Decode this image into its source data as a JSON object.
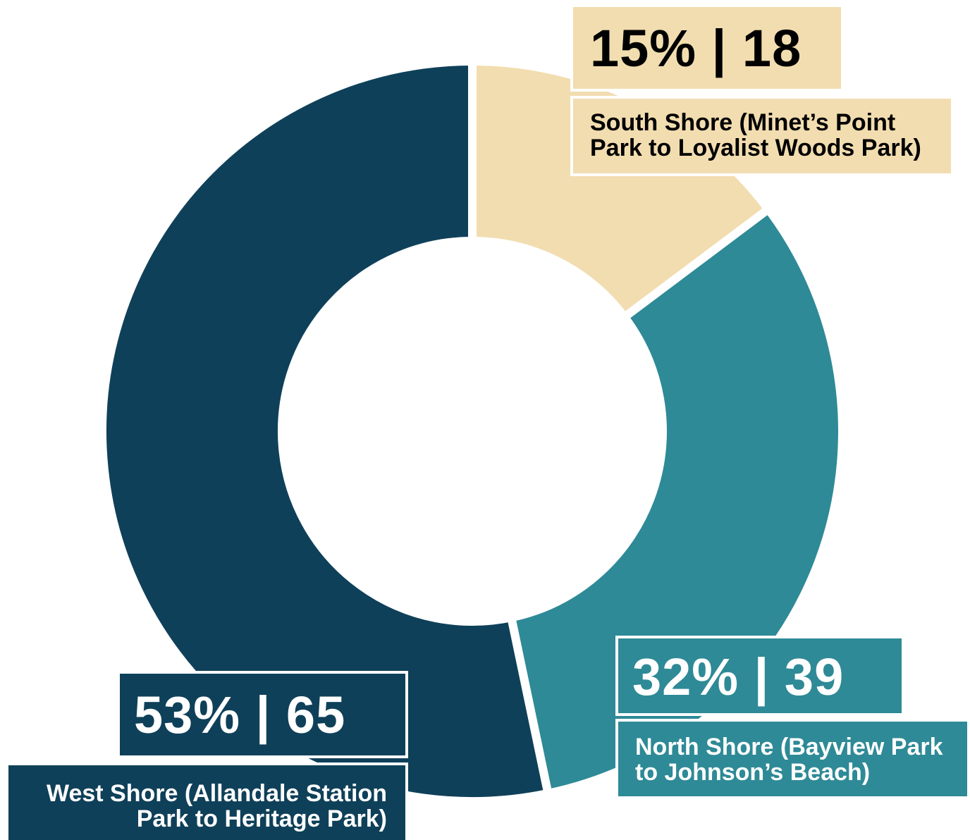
{
  "chart_data": {
    "type": "pie",
    "style": "donut",
    "categories": [
      "South Shore (Minet’s Point Park to Loyalist Woods Park)",
      "North Shore (Bayview Park to Johnson’s Beach)",
      "West Shore (Allandale Station Park to Heritage Park)"
    ],
    "values": [
      18,
      39,
      65
    ],
    "percents": [
      15,
      32,
      53
    ],
    "colors": [
      "#f2ddb0",
      "#2e8a96",
      "#0f4059"
    ],
    "labels": [
      {
        "value": "15% | 18",
        "text": "South Shore (Minet’s Point Park to Loyalist Woods Park)"
      },
      {
        "value": "32% | 39",
        "text": "North Shore (Bayview Park to Johnson’s Beach)"
      },
      {
        "value": "53% | 65",
        "text": "West Shore (Allandale Station Park to Heritage Park)"
      }
    ]
  }
}
